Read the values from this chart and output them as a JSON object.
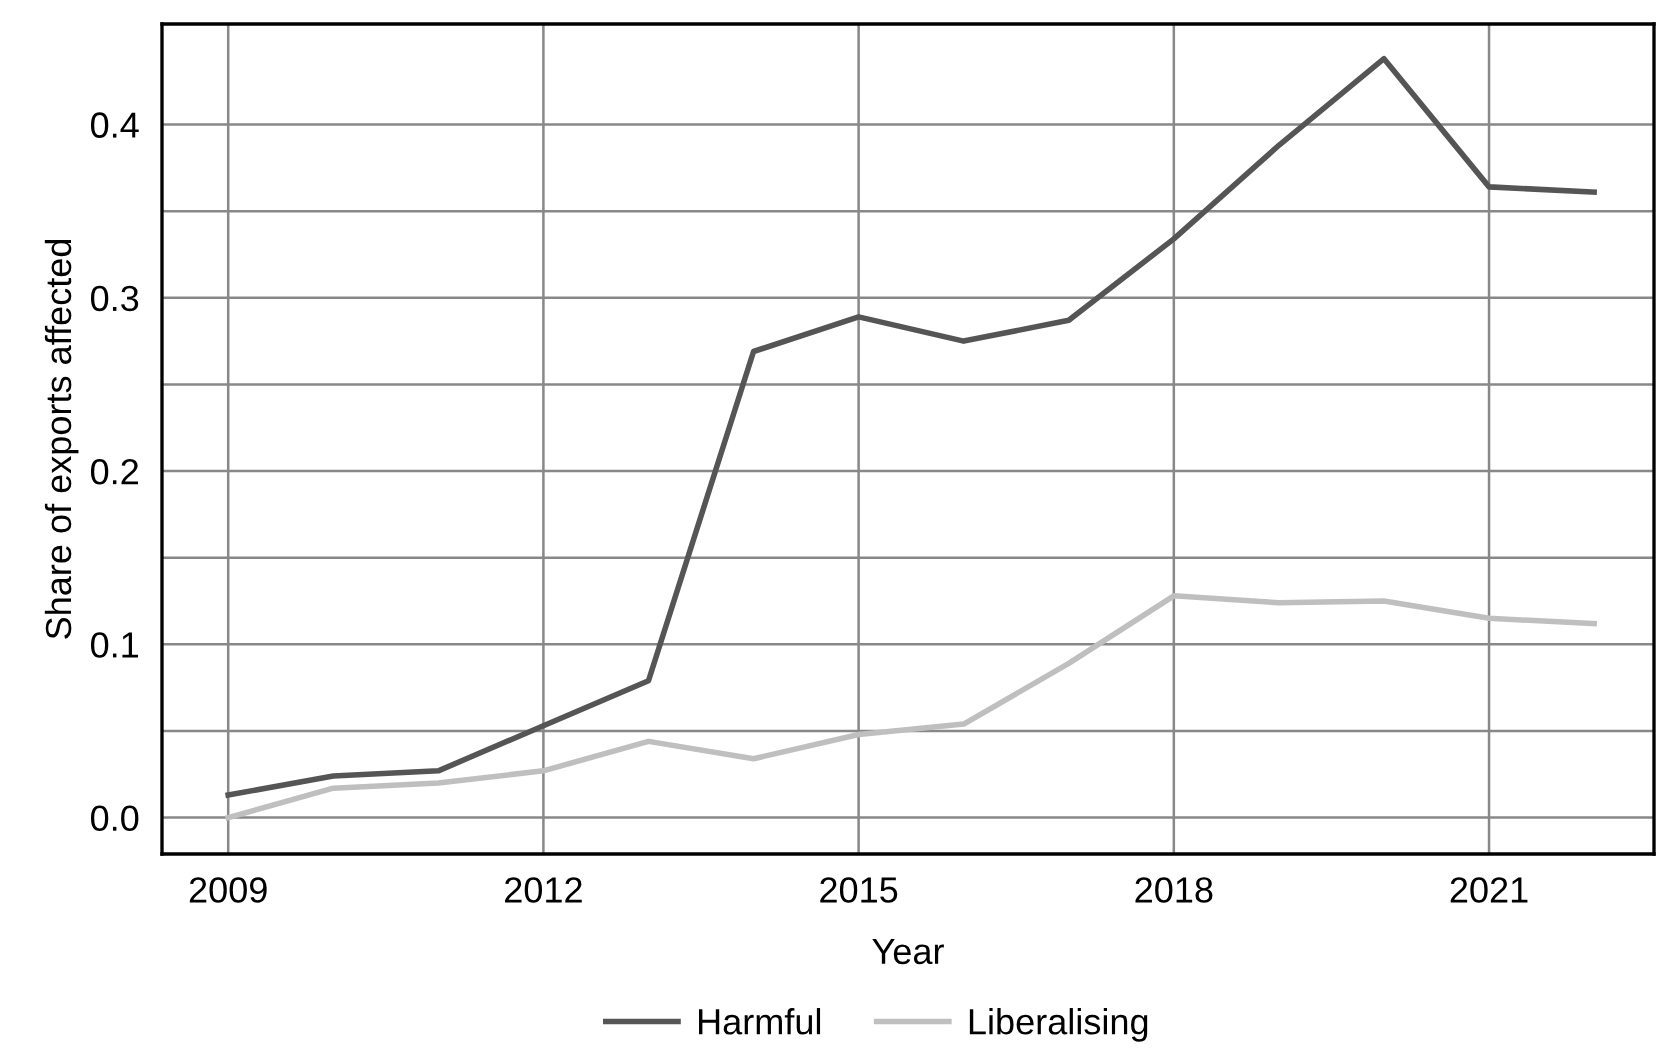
{
  "chart_data": {
    "type": "line",
    "xlabel": "Year",
    "ylabel": "Share of exports affected",
    "x": [
      2009,
      2010,
      2011,
      2012,
      2013,
      2014,
      2015,
      2016,
      2017,
      2018,
      2019,
      2020,
      2021,
      2022
    ],
    "series": [
      {
        "name": "Harmful",
        "color": "#555555",
        "values": [
          0.013,
          0.024,
          0.027,
          0.053,
          0.079,
          0.269,
          0.289,
          0.275,
          0.287,
          0.334,
          0.388,
          0.438,
          0.364,
          0.361
        ]
      },
      {
        "name": "Liberalising",
        "color": "#bfbfbf",
        "values": [
          0.0,
          0.017,
          0.02,
          0.027,
          0.044,
          0.034,
          0.048,
          0.054,
          0.089,
          0.128,
          0.124,
          0.125,
          0.115,
          0.112
        ]
      }
    ],
    "xlim": [
      2008.37,
      2022.57
    ],
    "xticks": [
      2009,
      2012,
      2015,
      2018,
      2021
    ],
    "ylim": [
      -0.021,
      0.458
    ],
    "yticks": [
      {
        "value": 0.0,
        "label": "0.0"
      },
      {
        "value": 0.05,
        "label": null
      },
      {
        "value": 0.1,
        "label": "0.1"
      },
      {
        "value": 0.15,
        "label": null
      },
      {
        "value": 0.2,
        "label": "0.2"
      },
      {
        "value": 0.25,
        "label": null
      },
      {
        "value": 0.3,
        "label": "0.3"
      },
      {
        "value": 0.35,
        "label": null
      },
      {
        "value": 0.4,
        "label": "0.4"
      }
    ],
    "grid": true,
    "legend": "bottom",
    "marker": "none",
    "line_style": "solid"
  }
}
